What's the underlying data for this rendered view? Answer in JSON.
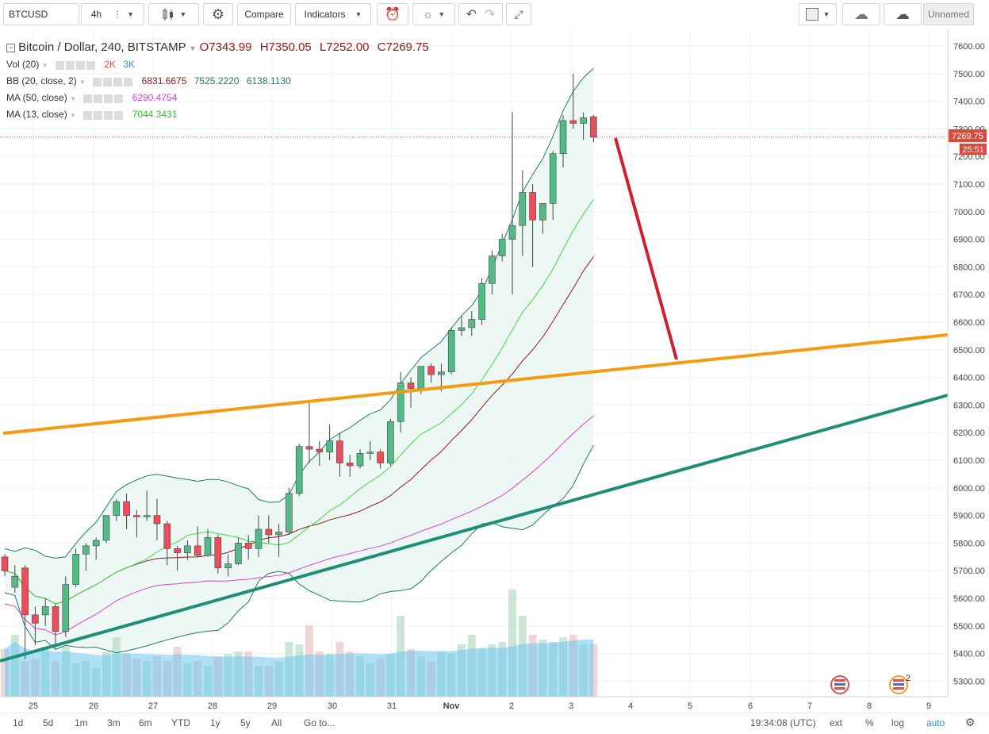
{
  "toolbar": {
    "symbol": "BTCUSD",
    "interval": "4h",
    "compare": "Compare",
    "indicators": "Indicators",
    "layout_name": "Unnamed"
  },
  "legend": {
    "title": "Bitcoin / Dollar, 240, BITSTAMP",
    "ohlc": {
      "o": "O7343.99",
      "h": "H7350.05",
      "l": "L7252.00",
      "c": "C7269.75"
    },
    "vol": {
      "name": "Vol (20)",
      "v1": "2K",
      "v2": "3K"
    },
    "bb": {
      "name": "BB (20, close, 2)",
      "v1": "6831.6675",
      "v2": "7525.2220",
      "v3": "6138.1130"
    },
    "ma50": {
      "name": "MA (50, close)",
      "v1": "6290.4754"
    },
    "ma13": {
      "name": "MA (13, close)",
      "v1": "7044.3431"
    }
  },
  "price_axis": {
    "labels": [
      "7600.00",
      "7500.00",
      "7400.00",
      "7300.00",
      "7200.00",
      "7100.00",
      "7000.00",
      "6900.00",
      "6800.00",
      "6700.00",
      "6600.00",
      "6500.00",
      "6400.00",
      "6300.00",
      "6200.00",
      "6100.00",
      "6000.00",
      "5900.00",
      "5800.00",
      "5700.00",
      "5600.00",
      "5500.00",
      "5400.00",
      "5300.00"
    ],
    "last_price": "7269.75",
    "countdown": "25:51"
  },
  "time_axis": {
    "labels": [
      "25",
      "26",
      "27",
      "28",
      "29",
      "30",
      "31",
      "Nov",
      "2",
      "3",
      "4",
      "5",
      "6",
      "7",
      "8",
      "9"
    ]
  },
  "bottombar": {
    "ranges": [
      "1d",
      "5d",
      "1m",
      "3m",
      "6m",
      "YTD",
      "1y",
      "5y",
      "All"
    ],
    "goto": "Go to...",
    "time": "19:34:08 (UTC)",
    "ext": "ext",
    "pct": "%",
    "log": "log",
    "auto": "auto"
  },
  "colors": {
    "up": "#53b987",
    "down": "#eb4d5c",
    "orange_line": "#f39c12",
    "green_line": "#1e8f74",
    "red_arrow": "#d0202f",
    "ma13": "#3ddc3d",
    "ma50": "#e040c8",
    "bb_basis": "#8b1a1a",
    "bb_band": "#1f7a6a"
  },
  "chart_data": {
    "type": "candlestick",
    "title": "Bitcoin / Dollar, 240, BITSTAMP",
    "ylim": [
      5250,
      7650
    ],
    "candles": [
      [
        5750,
        5760,
        5680,
        5700
      ],
      [
        5640,
        5720,
        5620,
        5680
      ],
      [
        5710,
        5720,
        5380,
        5540
      ],
      [
        5540,
        5570,
        5430,
        5510
      ],
      [
        5540,
        5600,
        5500,
        5570
      ],
      [
        5570,
        5580,
        5420,
        5480
      ],
      [
        5480,
        5680,
        5460,
        5650
      ],
      [
        5650,
        5780,
        5640,
        5760
      ],
      [
        5760,
        5800,
        5700,
        5790
      ],
      [
        5790,
        5820,
        5740,
        5810
      ],
      [
        5810,
        5900,
        5800,
        5900
      ],
      [
        5900,
        5960,
        5880,
        5950
      ],
      [
        5950,
        5980,
        5850,
        5900
      ],
      [
        5900,
        5920,
        5820,
        5895
      ],
      [
        5895,
        5990,
        5880,
        5900
      ],
      [
        5900,
        5960,
        5810,
        5870
      ],
      [
        5870,
        5880,
        5720,
        5780
      ],
      [
        5780,
        5790,
        5700,
        5765
      ],
      [
        5765,
        5810,
        5740,
        5790
      ],
      [
        5790,
        5860,
        5750,
        5755
      ],
      [
        5755,
        5850,
        5750,
        5820
      ],
      [
        5820,
        5830,
        5690,
        5710
      ],
      [
        5710,
        5760,
        5680,
        5725
      ],
      [
        5725,
        5820,
        5720,
        5800
      ],
      [
        5800,
        5830,
        5740,
        5780
      ],
      [
        5780,
        5900,
        5750,
        5850
      ],
      [
        5850,
        5900,
        5800,
        5830
      ],
      [
        5830,
        5870,
        5750,
        5840
      ],
      [
        5840,
        6000,
        5830,
        5980
      ],
      [
        5980,
        6160,
        5970,
        6150
      ],
      [
        6150,
        6310,
        6090,
        6140
      ],
      [
        6140,
        6170,
        6080,
        6130
      ],
      [
        6130,
        6230,
        6100,
        6170
      ],
      [
        6170,
        6200,
        6040,
        6090
      ],
      [
        6090,
        6120,
        6040,
        6080
      ],
      [
        6080,
        6140,
        6070,
        6125
      ],
      [
        6125,
        6170,
        6100,
        6130
      ],
      [
        6130,
        6140,
        6070,
        6090
      ],
      [
        6090,
        6250,
        6080,
        6240
      ],
      [
        6240,
        6420,
        6200,
        6380
      ],
      [
        6380,
        6400,
        6290,
        6360
      ],
      [
        6360,
        6440,
        6340,
        6440
      ],
      [
        6440,
        6450,
        6380,
        6410
      ],
      [
        6410,
        6450,
        6350,
        6420
      ],
      [
        6420,
        6580,
        6410,
        6570
      ],
      [
        6570,
        6620,
        6550,
        6580
      ],
      [
        6580,
        6640,
        6550,
        6610
      ],
      [
        6610,
        6760,
        6590,
        6740
      ],
      [
        6740,
        6860,
        6700,
        6840
      ],
      [
        6840,
        6920,
        6820,
        6900
      ],
      [
        6900,
        7360,
        6700,
        6950
      ],
      [
        6950,
        7150,
        6840,
        7070
      ],
      [
        7070,
        7100,
        6800,
        6970
      ],
      [
        6970,
        7030,
        6920,
        7030
      ],
      [
        7030,
        7220,
        6970,
        7210
      ],
      [
        7210,
        7350,
        7160,
        7330
      ],
      [
        7330,
        7500,
        7300,
        7320
      ],
      [
        7320,
        7360,
        7260,
        7340
      ],
      [
        7343.99,
        7350.05,
        7252.0,
        7269.75
      ]
    ],
    "volume": [
      2,
      2.6,
      1.5,
      1.6,
      2.1,
      1.5,
      2.1,
      1.4,
      1.5,
      1.2,
      1.9,
      2.5,
      1.8,
      1.6,
      1.5,
      1.7,
      1.5,
      2.1,
      1.4,
      1.5,
      1.3,
      1.7,
      1.8,
      1.9,
      1.9,
      1.3,
      1.3,
      1.5,
      2.3,
      2.2,
      3,
      1.9,
      1.8,
      2.3,
      1.9,
      1.7,
      1.4,
      1.6,
      1.8,
      3.4,
      2,
      1.7,
      1.5,
      1.9,
      1.8,
      2.2,
      2.6,
      2.0,
      2.2,
      2.3,
      4.5,
      3.4,
      2.6,
      2.4,
      2.3,
      2.5,
      2.6,
      2.2,
      2.2
    ],
    "annotations": [
      "orange trendline",
      "green trendline",
      "red projection arrow"
    ]
  }
}
